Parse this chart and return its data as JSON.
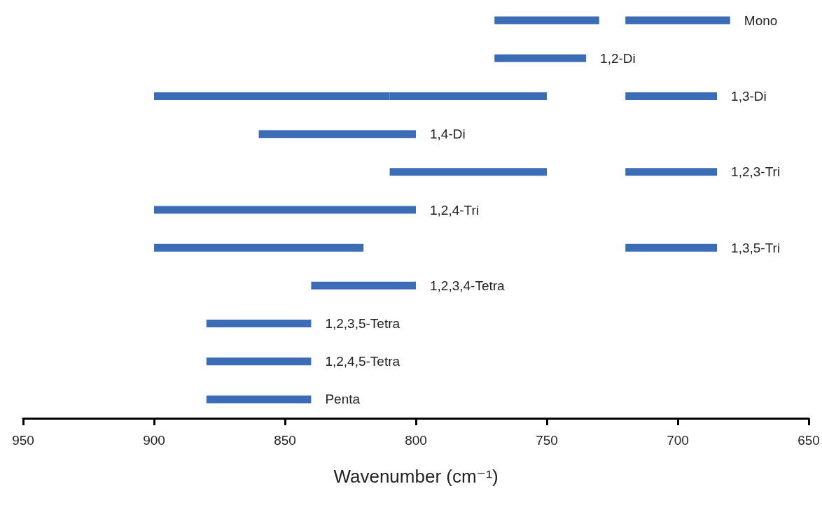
{
  "chart_data": {
    "type": "bar",
    "orientation": "horizontal",
    "xlabel": "Wavenumber (cm⁻¹)",
    "categories": [
      "Mono",
      "1,2-Di",
      "1,3-Di",
      "1,4-Di",
      "1,2,3-Tri",
      "1,2,4-Tri",
      "1,3,5-Tri",
      "1,2,3,4-Tetra",
      "1,2,3,5-Tetra",
      "1,2,4,5-Tetra",
      "Penta"
    ],
    "series": [
      {
        "color": "#3a6db5",
        "base": [
          730,
          735,
          810,
          800,
          750,
          800,
          820,
          800,
          840,
          840,
          840
        ],
        "values": [
          40,
          35,
          90,
          60,
          60,
          100,
          80,
          40,
          40,
          40,
          40
        ]
      },
      {
        "color": "#3a6db5",
        "base": [
          680,
          null,
          750,
          null,
          685,
          null,
          685,
          null,
          null,
          null,
          null
        ],
        "values": [
          40,
          null,
          60,
          null,
          35,
          null,
          35,
          null,
          null,
          null,
          null
        ]
      },
      {
        "color": "#3a6db5",
        "base": [
          null,
          null,
          685,
          null,
          null,
          null,
          null,
          null,
          null,
          null,
          null
        ],
        "values": [
          null,
          null,
          35,
          null,
          null,
          null,
          null,
          null,
          null,
          null,
          null
        ]
      }
    ],
    "xlim": [
      950,
      650
    ],
    "xticks": [
      950,
      900,
      850,
      800,
      750,
      700,
      650
    ]
  }
}
